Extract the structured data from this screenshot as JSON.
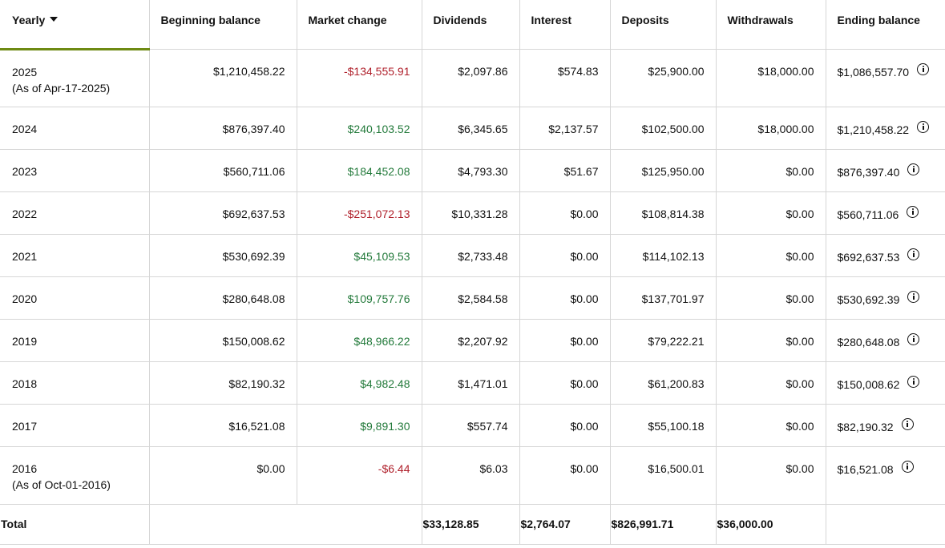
{
  "colors": {
    "accent_underline": "#6e8a13",
    "negative": "#b0212c",
    "positive": "#237a3b",
    "border": "#d6d6d6"
  },
  "headers": {
    "yearly": "Yearly",
    "beginning_balance": "Beginning balance",
    "market_change": "Market change",
    "dividends": "Dividends",
    "interest": "Interest",
    "deposits": "Deposits",
    "withdrawals": "Withdrawals",
    "ending_balance": "Ending balance"
  },
  "rows": [
    {
      "year": "2025",
      "note": "(As of Apr-17-2025)",
      "beginning": "$1,210,458.22",
      "market_change": "-$134,555.91",
      "market_sign": "neg",
      "dividends": "$2,097.86",
      "interest": "$574.83",
      "deposits": "$25,900.00",
      "withdrawals": "$18,000.00",
      "ending": "$1,086,557.70"
    },
    {
      "year": "2024",
      "note": "",
      "beginning": "$876,397.40",
      "market_change": "$240,103.52",
      "market_sign": "pos",
      "dividends": "$6,345.65",
      "interest": "$2,137.57",
      "deposits": "$102,500.00",
      "withdrawals": "$18,000.00",
      "ending": "$1,210,458.22"
    },
    {
      "year": "2023",
      "note": "",
      "beginning": "$560,711.06",
      "market_change": "$184,452.08",
      "market_sign": "pos",
      "dividends": "$4,793.30",
      "interest": "$51.67",
      "deposits": "$125,950.00",
      "withdrawals": "$0.00",
      "ending": "$876,397.40"
    },
    {
      "year": "2022",
      "note": "",
      "beginning": "$692,637.53",
      "market_change": "-$251,072.13",
      "market_sign": "neg",
      "dividends": "$10,331.28",
      "interest": "$0.00",
      "deposits": "$108,814.38",
      "withdrawals": "$0.00",
      "ending": "$560,711.06"
    },
    {
      "year": "2021",
      "note": "",
      "beginning": "$530,692.39",
      "market_change": "$45,109.53",
      "market_sign": "pos",
      "dividends": "$2,733.48",
      "interest": "$0.00",
      "deposits": "$114,102.13",
      "withdrawals": "$0.00",
      "ending": "$692,637.53"
    },
    {
      "year": "2020",
      "note": "",
      "beginning": "$280,648.08",
      "market_change": "$109,757.76",
      "market_sign": "pos",
      "dividends": "$2,584.58",
      "interest": "$0.00",
      "deposits": "$137,701.97",
      "withdrawals": "$0.00",
      "ending": "$530,692.39"
    },
    {
      "year": "2019",
      "note": "",
      "beginning": "$150,008.62",
      "market_change": "$48,966.22",
      "market_sign": "pos",
      "dividends": "$2,207.92",
      "interest": "$0.00",
      "deposits": "$79,222.21",
      "withdrawals": "$0.00",
      "ending": "$280,648.08"
    },
    {
      "year": "2018",
      "note": "",
      "beginning": "$82,190.32",
      "market_change": "$4,982.48",
      "market_sign": "pos",
      "dividends": "$1,471.01",
      "interest": "$0.00",
      "deposits": "$61,200.83",
      "withdrawals": "$0.00",
      "ending": "$150,008.62"
    },
    {
      "year": "2017",
      "note": "",
      "beginning": "$16,521.08",
      "market_change": "$9,891.30",
      "market_sign": "pos",
      "dividends": "$557.74",
      "interest": "$0.00",
      "deposits": "$55,100.18",
      "withdrawals": "$0.00",
      "ending": "$82,190.32"
    },
    {
      "year": "2016",
      "note": "(As of Oct-01-2016)",
      "beginning": "$0.00",
      "market_change": "-$6.44",
      "market_sign": "neg",
      "dividends": "$6.03",
      "interest": "$0.00",
      "deposits": "$16,500.01",
      "withdrawals": "$0.00",
      "ending": "$16,521.08"
    }
  ],
  "total": {
    "label": "Total",
    "dividends": "$33,128.85",
    "interest": "$2,764.07",
    "deposits": "$826,991.71",
    "withdrawals": "$36,000.00"
  }
}
